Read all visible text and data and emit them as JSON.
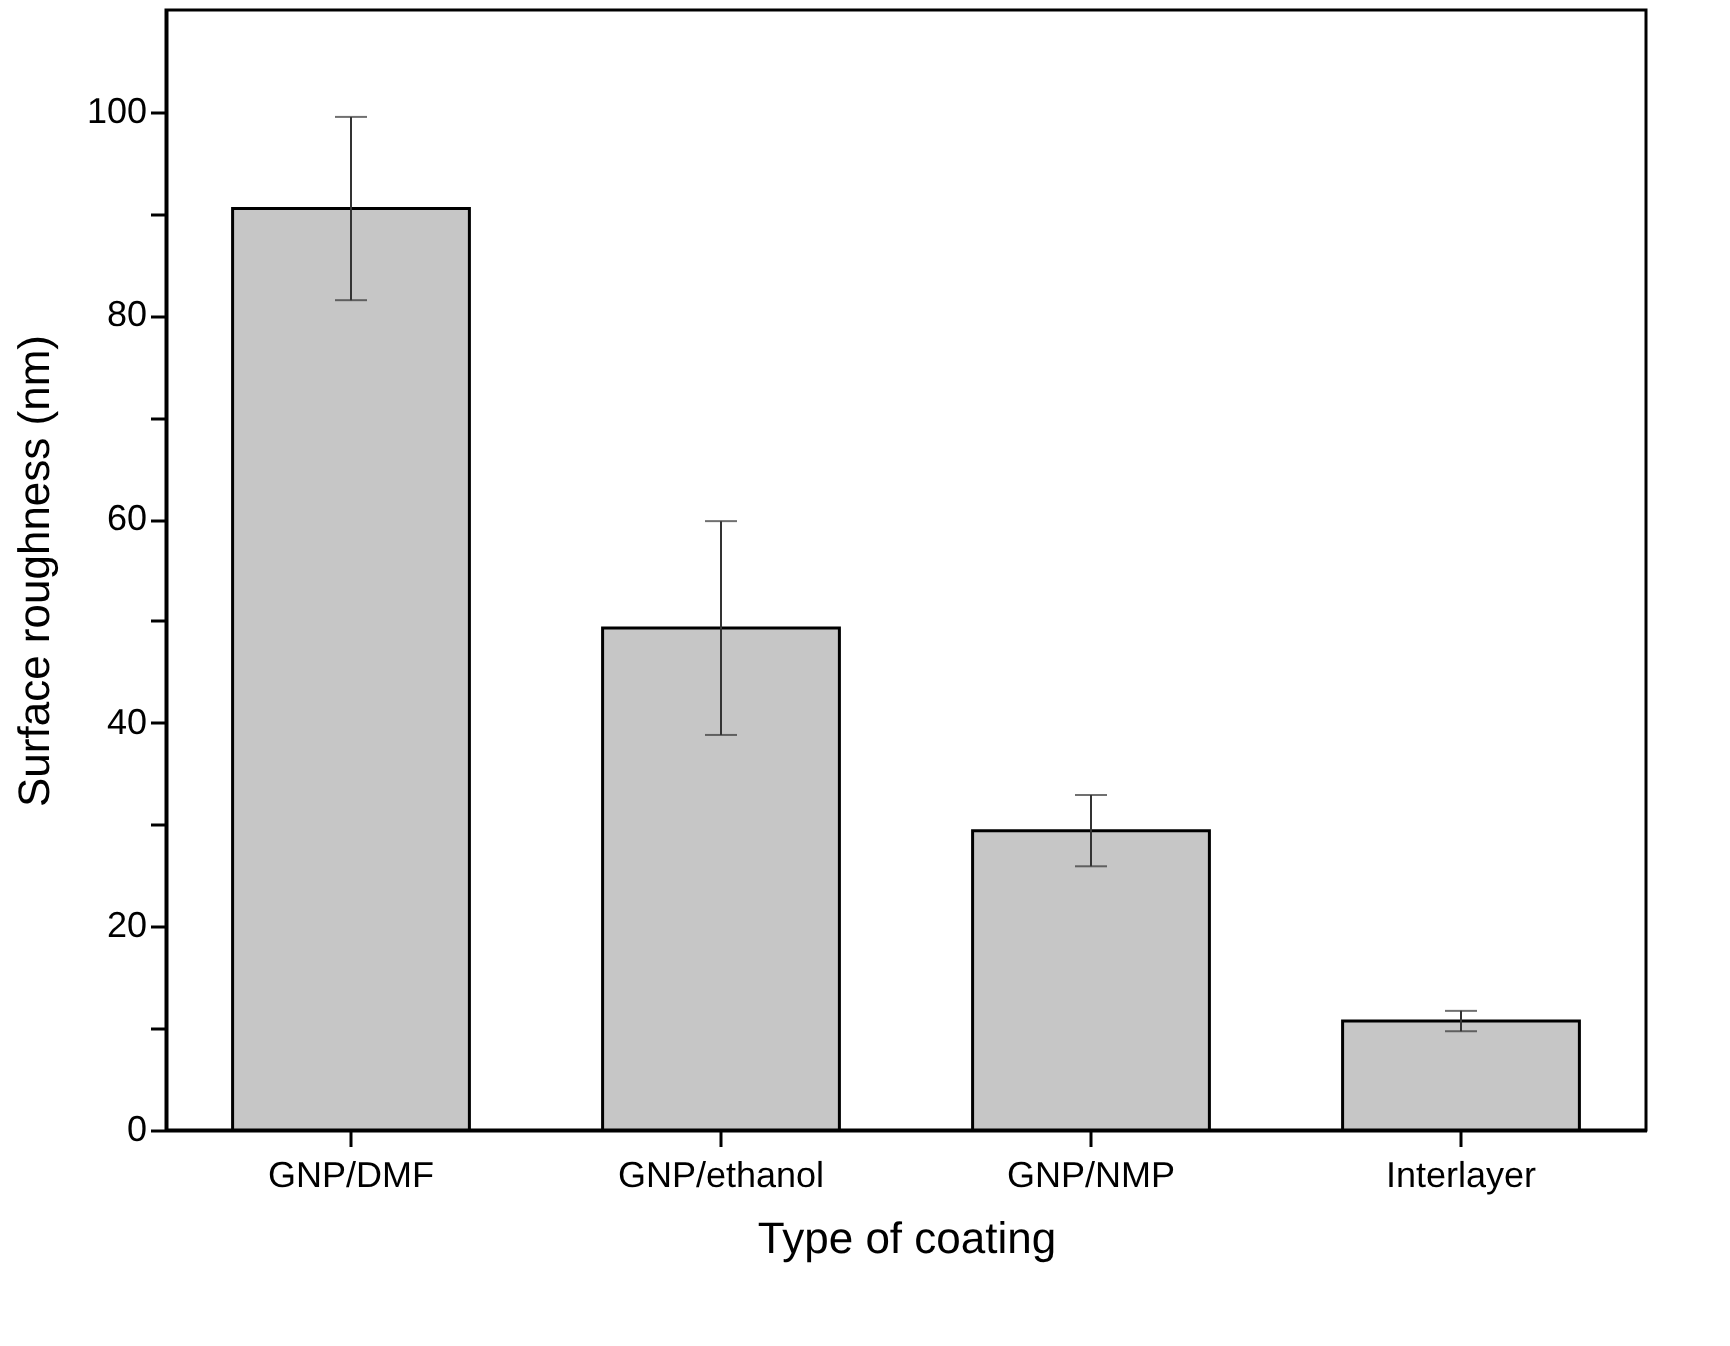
{
  "chart_data": {
    "type": "bar",
    "xlabel": "Type of coating",
    "ylabel": "Surface roughness (nm)",
    "categories": [
      "GNP/DMF",
      "GNP/ethanol",
      "GNP/NMP",
      "Interlayer"
    ],
    "values": [
      90.5,
      49.3,
      29.4,
      10.7
    ],
    "errors": [
      9,
      10.5,
      3.5,
      1
    ],
    "color": "#c6c6c6",
    "ylim": [
      0,
      110
    ],
    "yticks": [
      0,
      {
        "value": 10,
        "label": null
      },
      20,
      {
        "value": 30,
        "label": null
      },
      40,
      {
        "value": 50,
        "label": null
      },
      60,
      {
        "value": 70,
        "label": null
      },
      80,
      {
        "value": 90,
        "label": null
      },
      100
    ],
    "grid": false
  }
}
